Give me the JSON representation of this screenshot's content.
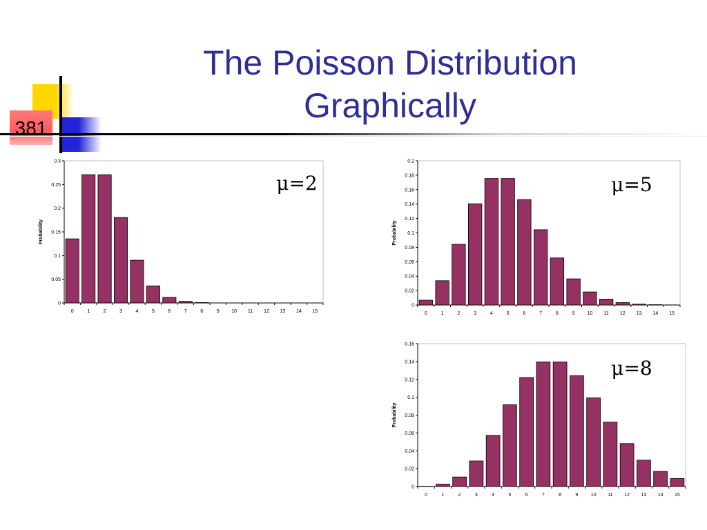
{
  "slide": {
    "number": "381",
    "title_line1": "The Poisson Distribution",
    "title_line2": "Graphically"
  },
  "colors": {
    "bar": "#953163",
    "title": "#2e2e93",
    "accent_yellow": "#ffd700",
    "accent_blue": "#2323d8",
    "accent_red": "#ff5a5a"
  },
  "chart_data": [
    {
      "type": "bar",
      "annotation": "μ=2",
      "ylabel": "Probability",
      "xlabel": "",
      "categories": [
        "0",
        "1",
        "2",
        "3",
        "4",
        "5",
        "6",
        "7",
        "8",
        "9",
        "10",
        "11",
        "12",
        "13",
        "14",
        "15"
      ],
      "values": [
        0.1353,
        0.2707,
        0.2707,
        0.1804,
        0.0902,
        0.0361,
        0.012,
        0.0034,
        0.0009,
        0.0002,
        0,
        0,
        0,
        0,
        0,
        0
      ],
      "ylim": [
        0,
        0.3
      ],
      "yticks": [
        "0",
        "0.05",
        "0.1",
        "0.15",
        "0.2",
        "0.25",
        "0.3"
      ],
      "grid": false
    },
    {
      "type": "bar",
      "annotation": "μ=5",
      "ylabel": "Probability",
      "xlabel": "",
      "categories": [
        "0",
        "1",
        "2",
        "3",
        "4",
        "5",
        "6",
        "7",
        "8",
        "9",
        "10",
        "11",
        "12",
        "13",
        "14",
        "15"
      ],
      "values": [
        0.0067,
        0.0337,
        0.0842,
        0.1404,
        0.1755,
        0.1755,
        0.1462,
        0.1044,
        0.0653,
        0.0363,
        0.0181,
        0.0082,
        0.0034,
        0.0013,
        0.0005,
        0.0002
      ],
      "ylim": [
        0,
        0.2
      ],
      "yticks": [
        "0",
        "0.02",
        "0.04",
        "0.06",
        "0.08",
        "0.1",
        "0.12",
        "0.14",
        "0.16",
        "0.18",
        "0.2"
      ],
      "grid": false
    },
    {
      "type": "bar",
      "annotation": "μ=8",
      "ylabel": "Probability",
      "xlabel": "",
      "categories": [
        "0",
        "1",
        "2",
        "3",
        "4",
        "5",
        "6",
        "7",
        "8",
        "9",
        "10",
        "11",
        "12",
        "13",
        "14",
        "15"
      ],
      "values": [
        0.0003,
        0.0027,
        0.0107,
        0.0286,
        0.0573,
        0.0916,
        0.1221,
        0.1396,
        0.1396,
        0.1241,
        0.0993,
        0.0722,
        0.0481,
        0.0296,
        0.0169,
        0.009
      ],
      "ylim": [
        0,
        0.16
      ],
      "yticks": [
        "0",
        "0.02",
        "0.04",
        "0.06",
        "0.08",
        "0.1",
        "0.12",
        "0.14",
        "0.16"
      ],
      "grid": false
    }
  ]
}
